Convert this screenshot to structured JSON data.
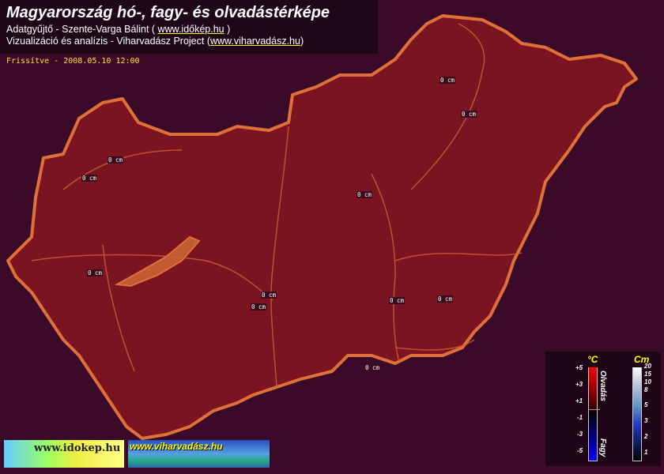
{
  "header": {
    "title": "Magyarország hó-, fagy- és olvadástérképe",
    "line1_prefix": "Adatgyűjtő - Szente-Varga Bálint ( ",
    "line1_link": "www.időkép.hu",
    "line1_suffix": " )",
    "line2_prefix": "Vizualizáció és analízis - Viharvadász Project (",
    "line2_link": "www.viharvadász.hu",
    "line2_suffix": ")",
    "updated": "Frissítve - 2008.05.10 12:00"
  },
  "map": {
    "fill_color": "#7a1420",
    "border_color": "#e0703a",
    "lake_color": "#c05a30",
    "stations": [
      "0 cm",
      "0 cm",
      "0 cm",
      "0 cm",
      "0 cm",
      "0 cm",
      "0 cm",
      "0 cm",
      "0 cm",
      "0 cm",
      "0 cm"
    ]
  },
  "legend": {
    "temp_unit": "°C",
    "snow_unit": "Cm",
    "temp_ticks": [
      "+5",
      "+3",
      "+1",
      "-1",
      "-3",
      "-5"
    ],
    "snow_ticks": [
      "20",
      "15",
      "10",
      "8",
      "5",
      "3",
      "2",
      "1"
    ],
    "melt_label": "Olvadás",
    "frost_label": "Fagy"
  },
  "banners": {
    "idokep": "www.idokep.hu",
    "viharvadasz": "www.viharvadász.hu"
  }
}
